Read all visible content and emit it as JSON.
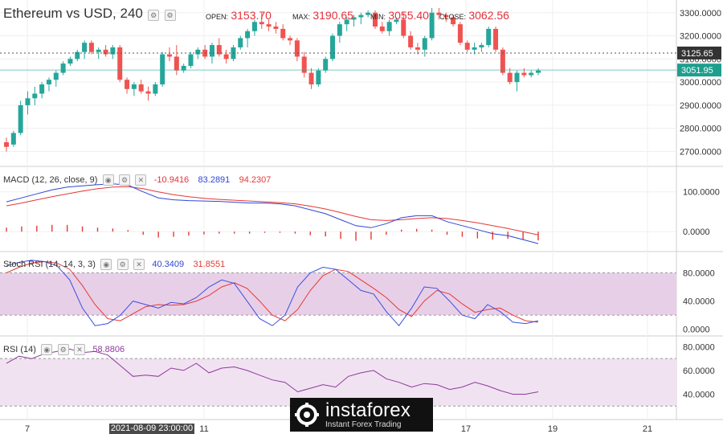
{
  "header": {
    "title": "Ethereum vs USD, 240",
    "open_label": "OPEN:",
    "open_value": "3153.70",
    "max_label": "MAX:",
    "max_value": "3190.65",
    "min_label": "MIN:",
    "min_value": "3055.40",
    "close_label": "CLOSE:",
    "close_value": "3062.56"
  },
  "panes": {
    "macd": {
      "title": "MACD (12, 26, close, 9)",
      "v1": "-10.9416",
      "v2": "83.2891",
      "v3": "94.2307"
    },
    "stoch": {
      "title": "Stoch RSI (14, 14, 3, 3)",
      "v1": "40.3409",
      "v2": "31.8551"
    },
    "rsi": {
      "title": "RSI (14)",
      "v1": "58.8806"
    }
  },
  "price_tags": {
    "upper": "3125.65",
    "current": "3051.95"
  },
  "crosshair_date": "2021-08-09 23:00:00",
  "watermark": {
    "brand": "instaforex",
    "tagline": "Instant Forex Trading"
  },
  "colors": {
    "up": "#26a69a",
    "down": "#ef5350",
    "macd_line": "#2f47d6",
    "signal_line": "#e53935",
    "stoch_k": "#3b4fe0",
    "stoch_d": "#e53935",
    "rsi": "#8e3a9d",
    "band": "#e8cfe8"
  },
  "chart_data": [
    {
      "type": "candlestick",
      "title": "Ethereum vs USD, 240",
      "x_ticks": [
        "7",
        "11",
        "17",
        "19",
        "21"
      ],
      "y_ticks": [
        2700,
        2800,
        2900,
        3000,
        3100,
        3200,
        3300
      ],
      "ylim": [
        2660,
        3320
      ],
      "candles": [
        [
          2740,
          2760,
          2700,
          2720
        ],
        [
          2730,
          2790,
          2720,
          2780
        ],
        [
          2780,
          2920,
          2770,
          2900
        ],
        [
          2900,
          2960,
          2860,
          2930
        ],
        [
          2930,
          2980,
          2900,
          2950
        ],
        [
          2950,
          3000,
          2930,
          2990
        ],
        [
          2990,
          3020,
          2960,
          3010
        ],
        [
          3010,
          3050,
          2980,
          3040
        ],
        [
          3040,
          3090,
          3030,
          3080
        ],
        [
          3080,
          3110,
          3070,
          3100
        ],
        [
          3100,
          3140,
          3090,
          3130
        ],
        [
          3130,
          3180,
          3100,
          3170
        ],
        [
          3170,
          3180,
          3120,
          3130
        ],
        [
          3130,
          3150,
          3100,
          3140
        ],
        [
          3140,
          3160,
          3110,
          3120
        ],
        [
          3120,
          3160,
          3100,
          3150
        ],
        [
          3150,
          3160,
          3000,
          3010
        ],
        [
          3010,
          3020,
          2950,
          2970
        ],
        [
          2970,
          3000,
          2940,
          2990
        ],
        [
          2990,
          3010,
          2950,
          2960
        ],
        [
          2960,
          2980,
          2920,
          2950
        ],
        [
          2950,
          3000,
          2940,
          2990
        ],
        [
          2990,
          3130,
          2980,
          3120
        ],
        [
          3120,
          3150,
          3090,
          3110
        ],
        [
          3110,
          3160,
          3030,
          3050
        ],
        [
          3050,
          3080,
          3040,
          3070
        ],
        [
          3070,
          3130,
          3060,
          3120
        ],
        [
          3120,
          3150,
          3100,
          3140
        ],
        [
          3140,
          3160,
          3100,
          3110
        ],
        [
          3110,
          3170,
          3080,
          3160
        ],
        [
          3160,
          3190,
          3110,
          3120
        ],
        [
          3120,
          3140,
          3080,
          3100
        ],
        [
          3100,
          3160,
          3090,
          3150
        ],
        [
          3150,
          3200,
          3140,
          3190
        ],
        [
          3190,
          3230,
          3150,
          3220
        ],
        [
          3220,
          3270,
          3200,
          3260
        ],
        [
          3260,
          3300,
          3230,
          3250
        ],
        [
          3250,
          3270,
          3220,
          3240
        ],
        [
          3240,
          3260,
          3210,
          3230
        ],
        [
          3230,
          3250,
          3180,
          3190
        ],
        [
          3190,
          3200,
          3160,
          3180
        ],
        [
          3180,
          3190,
          3090,
          3110
        ],
        [
          3110,
          3130,
          3020,
          3040
        ],
        [
          3040,
          3060,
          2970,
          2990
        ],
        [
          2990,
          3060,
          2980,
          3050
        ],
        [
          3050,
          3110,
          3040,
          3100
        ],
        [
          3100,
          3210,
          3090,
          3200
        ],
        [
          3200,
          3260,
          3170,
          3250
        ],
        [
          3250,
          3280,
          3220,
          3270
        ],
        [
          3270,
          3290,
          3240,
          3280
        ],
        [
          3280,
          3300,
          3250,
          3290
        ],
        [
          3290,
          3310,
          3280,
          3300
        ],
        [
          3300,
          3310,
          3230,
          3240
        ],
        [
          3240,
          3260,
          3210,
          3220
        ],
        [
          3220,
          3270,
          3200,
          3260
        ],
        [
          3260,
          3280,
          3250,
          3270
        ],
        [
          3270,
          3300,
          3190,
          3200
        ],
        [
          3200,
          3220,
          3140,
          3150
        ],
        [
          3150,
          3170,
          3120,
          3140
        ],
        [
          3140,
          3200,
          3110,
          3190
        ],
        [
          3190,
          3320,
          3180,
          3300
        ],
        [
          3300,
          3320,
          3270,
          3290
        ],
        [
          3290,
          3300,
          3260,
          3280
        ],
        [
          3280,
          3290,
          3240,
          3250
        ],
        [
          3250,
          3260,
          3160,
          3170
        ],
        [
          3170,
          3180,
          3130,
          3140
        ],
        [
          3140,
          3170,
          3120,
          3150
        ],
        [
          3150,
          3170,
          3130,
          3160
        ],
        [
          3160,
          3240,
          3150,
          3230
        ],
        [
          3230,
          3240,
          3130,
          3140
        ],
        [
          3140,
          3150,
          3030,
          3040
        ],
        [
          3040,
          3060,
          2990,
          3000
        ],
        [
          3000,
          3050,
          2960,
          3040
        ],
        [
          3040,
          3060,
          3020,
          3030
        ],
        [
          3030,
          3050,
          3020,
          3040
        ],
        [
          3040,
          3060,
          3030,
          3050
        ]
      ]
    },
    {
      "type": "line",
      "title": "MACD (12, 26, close, 9)",
      "y_ticks": [
        0,
        100
      ],
      "ylim": [
        -40,
        150
      ],
      "series": [
        {
          "name": "MACD",
          "values": [
            75,
            85,
            95,
            105,
            112,
            115,
            118,
            120,
            117,
            100,
            85,
            80,
            78,
            77,
            76,
            74,
            72,
            72,
            70,
            65,
            55,
            45,
            30,
            15,
            10,
            20,
            35,
            40,
            40,
            25,
            15,
            5,
            -5,
            -10,
            -20,
            -30
          ]
        },
        {
          "name": "Signal",
          "values": [
            65,
            72,
            80,
            88,
            95,
            102,
            108,
            112,
            113,
            108,
            100,
            93,
            88,
            84,
            81,
            79,
            77,
            75,
            73,
            70,
            64,
            57,
            48,
            38,
            30,
            28,
            30,
            33,
            35,
            33,
            28,
            22,
            15,
            8,
            0,
            -8
          ]
        },
        {
          "name": "Histogram",
          "values": [
            10,
            13,
            15,
            17,
            17,
            13,
            10,
            8,
            4,
            -8,
            -15,
            -13,
            -10,
            -7,
            -5,
            -5,
            -5,
            -3,
            -3,
            -5,
            -9,
            -12,
            -18,
            -23,
            -20,
            -8,
            5,
            7,
            5,
            -8,
            -13,
            -17,
            -20,
            -18,
            -20,
            -22
          ]
        }
      ]
    },
    {
      "type": "line",
      "title": "Stoch RSI (14, 14, 3, 3)",
      "y_ticks": [
        0,
        40,
        80
      ],
      "ylim": [
        -5,
        100
      ],
      "bands": [
        20,
        80
      ],
      "series": [
        {
          "name": "K",
          "values": [
            90,
            95,
            98,
            96,
            90,
            70,
            30,
            5,
            8,
            20,
            40,
            35,
            30,
            38,
            36,
            45,
            60,
            70,
            65,
            40,
            15,
            5,
            20,
            60,
            80,
            88,
            85,
            70,
            55,
            50,
            25,
            5,
            30,
            60,
            58,
            40,
            20,
            15,
            35,
            25,
            10,
            8,
            12
          ]
        },
        {
          "name": "D",
          "values": [
            80,
            88,
            94,
            96,
            94,
            85,
            62,
            35,
            15,
            12,
            22,
            32,
            35,
            34,
            35,
            40,
            48,
            60,
            66,
            58,
            40,
            20,
            12,
            28,
            55,
            76,
            85,
            82,
            70,
            58,
            45,
            28,
            18,
            40,
            55,
            50,
            36,
            24,
            28,
            30,
            20,
            12,
            10
          ]
        }
      ]
    },
    {
      "type": "line",
      "title": "RSI (14)",
      "y_ticks": [
        40,
        60,
        80
      ],
      "ylim": [
        20,
        85
      ],
      "bands": [
        30,
        70
      ],
      "series": [
        {
          "name": "RSI",
          "values": [
            66,
            72,
            70,
            74,
            76,
            78,
            75,
            76,
            73,
            64,
            55,
            56,
            55,
            62,
            60,
            66,
            58,
            62,
            63,
            60,
            56,
            52,
            50,
            42,
            45,
            48,
            46,
            55,
            58,
            60,
            53,
            50,
            46,
            49,
            48,
            44,
            46,
            50,
            47,
            43,
            40,
            40,
            42
          ]
        }
      ]
    }
  ]
}
